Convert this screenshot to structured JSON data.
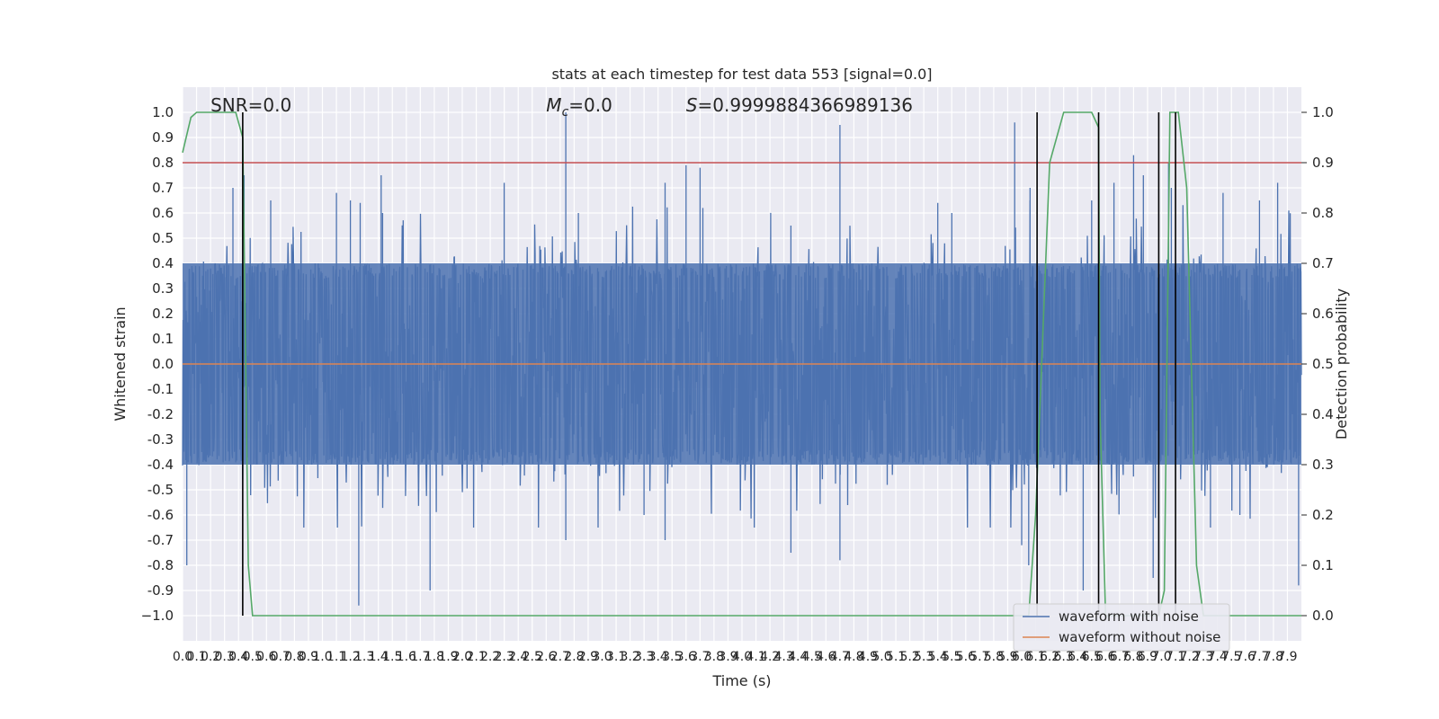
{
  "chart_data": {
    "type": "line",
    "title": "stats at each timestep for test data 553 [signal=0.0]",
    "xlabel": "Time (s)",
    "ylabel_left": "Whitened strain",
    "ylabel_right": "Detection probability",
    "xlim": [
      0.0,
      8.0
    ],
    "ylim_left": [
      -1.1,
      1.1
    ],
    "ylim_right": [
      -0.05,
      1.05
    ],
    "x_tick_labels": [
      "0.0",
      "0.1",
      "0.2",
      "0.3",
      "0.4",
      "0.5",
      "0.6",
      "0.7",
      "0.8",
      "0.9",
      "1.0",
      "1.1",
      "1.2",
      "1.3",
      "1.4",
      "1.5",
      "1.6",
      "1.7",
      "1.8",
      "1.9",
      "2.0",
      "2.1",
      "2.2",
      "2.3",
      "2.4",
      "2.5",
      "2.6",
      "2.7",
      "2.8",
      "2.9",
      "3.0",
      "3.1",
      "3.2",
      "3.3",
      "3.4",
      "3.5",
      "3.6",
      "3.7",
      "3.8",
      "3.9",
      "4.0",
      "4.1",
      "4.2",
      "4.3",
      "4.4",
      "4.5",
      "4.6",
      "4.7",
      "4.8",
      "4.9",
      "5.0",
      "5.1",
      "5.2",
      "5.3",
      "5.4",
      "5.5",
      "5.6",
      "5.7",
      "5.8",
      "5.9",
      "6.0",
      "6.1",
      "6.2",
      "6.3",
      "6.4",
      "6.5",
      "6.6",
      "6.7",
      "6.8",
      "6.9",
      "7.0",
      "7.1",
      "7.2",
      "7.3",
      "7.4",
      "7.5",
      "7.6",
      "7.7",
      "7.8",
      "7.9"
    ],
    "y_tick_labels_left": [
      "1.0",
      "0.9",
      "0.8",
      "0.7",
      "0.6",
      "0.5",
      "0.4",
      "0.3",
      "0.2",
      "0.1",
      "0.0",
      "-0.1",
      "-0.2",
      "-0.3",
      "-0.4",
      "-0.5",
      "-0.6",
      "-0.7",
      "-0.8",
      "-0.9",
      "−1.0"
    ],
    "y_tick_labels_right": [
      "1.0",
      "0.9",
      "0.8",
      "0.7",
      "0.6",
      "0.5",
      "0.4",
      "0.3",
      "0.2",
      "0.1",
      "0.0"
    ],
    "annotations": {
      "snr": "SNR=0.0",
      "mc_symbol": "M",
      "mc_sub": "c",
      "mc_value": "=0.0",
      "s_symbol": "S",
      "s_value": "=0.9999884366989136"
    },
    "threshold": {
      "axis": "right",
      "value": 0.9,
      "color": "#c44e52"
    },
    "series": [
      {
        "name": "waveform with noise",
        "axis": "left",
        "color": "#4c72b0",
        "description_points": "dense noise",
        "noise_envelope": {
          "core": 0.4,
          "typical_max": 0.6
        },
        "peaks_x": [
          0.03,
          0.36,
          0.44,
          0.63,
          1.1,
          1.2,
          1.26,
          1.27,
          1.42,
          1.43,
          1.77,
          2.3,
          2.74,
          2.74,
          2.83,
          3.3,
          3.45,
          3.45,
          3.6,
          3.7,
          3.72,
          4.35,
          4.35,
          4.7,
          4.7,
          5.4,
          5.5,
          5.95,
          6.0,
          6.05,
          6.06,
          6.44,
          6.5,
          6.66,
          6.8,
          6.87,
          6.94,
          7.05,
          7.07,
          7.35,
          7.44,
          7.56,
          7.7,
          7.83,
          7.98
        ],
        "peaks_y": [
          -0.8,
          0.7,
          0.75,
          0.65,
          0.68,
          0.65,
          -0.96,
          0.64,
          0.75,
          0.6,
          -0.9,
          0.72,
          1.0,
          -0.7,
          0.6,
          -0.6,
          0.72,
          -0.7,
          0.79,
          0.78,
          0.62,
          0.55,
          -0.75,
          0.95,
          -0.78,
          0.64,
          0.6,
          0.96,
          -0.72,
          -0.8,
          0.7,
          -0.9,
          0.65,
          0.72,
          0.83,
          0.75,
          -0.85,
          0.8,
          0.7,
          -0.65,
          0.68,
          -0.6,
          0.65,
          0.72,
          -0.88
        ]
      },
      {
        "name": "waveform without noise",
        "axis": "left",
        "color": "#dd8452",
        "x": [
          0.0,
          8.0
        ],
        "y": [
          0.0,
          0.0
        ]
      },
      {
        "axis": "right",
        "color": "#55a868",
        "x": [
          0.0,
          0.06,
          0.1,
          0.3,
          0.43,
          0.48,
          0.5,
          8.0
        ],
        "y": [
          0.92,
          1.0,
          1.0,
          1.0,
          0.95,
          0.0,
          0.0,
          0.0
        ],
        "segments": [
          {
            "x": [
              0.0,
              0.06,
              0.1,
              0.38,
              0.43,
              0.47,
              0.5,
              6.05
            ],
            "y": [
              0.92,
              0.99,
              1.0,
              1.0,
              0.95,
              0.1,
              0.0,
              0.0
            ]
          },
          {
            "x": [
              6.05,
              6.1,
              6.2,
              6.3,
              6.5,
              6.55,
              6.56,
              6.6,
              6.7
            ],
            "y": [
              0.0,
              0.2,
              0.9,
              1.0,
              1.0,
              0.97,
              0.4,
              0.0,
              0.0
            ]
          },
          {
            "x": [
              6.7,
              6.98,
              7.02,
              7.06,
              7.12,
              7.18,
              7.25,
              7.3,
              8.0
            ],
            "y": [
              0.0,
              0.0,
              0.05,
              1.0,
              1.0,
              0.85,
              0.1,
              0.0,
              0.0
            ]
          }
        ]
      }
    ],
    "vertical_markers_x": [
      0.43,
      6.11,
      6.55,
      6.98,
      7.1
    ],
    "legend_position": "bottom-right",
    "grid": true
  }
}
